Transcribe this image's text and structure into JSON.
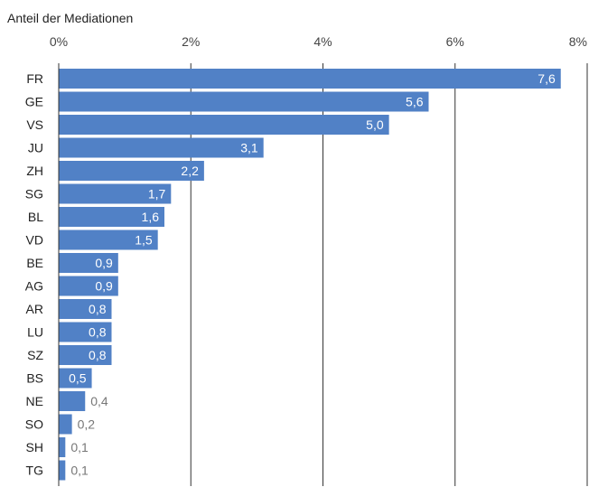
{
  "chart_data": {
    "type": "bar",
    "orientation": "horizontal",
    "title": "Anteil der Mediationen",
    "xlabel": "",
    "ylabel": "",
    "xlim": [
      0,
      8
    ],
    "x_ticks": [
      "0%",
      "2%",
      "4%",
      "6%",
      "8%"
    ],
    "grid": true,
    "categories": [
      "FR",
      "GE",
      "VS",
      "JU",
      "ZH",
      "SG",
      "BL",
      "VD",
      "BE",
      "AG",
      "AR",
      "LU",
      "SZ",
      "BS",
      "NE",
      "SO",
      "SH",
      "TG"
    ],
    "values": [
      7.6,
      5.6,
      5.0,
      3.1,
      2.2,
      1.7,
      1.6,
      1.5,
      0.9,
      0.9,
      0.8,
      0.8,
      0.8,
      0.5,
      0.4,
      0.2,
      0.1,
      0.1
    ],
    "value_labels": [
      "7,6",
      "5,6",
      "5,0",
      "3,1",
      "2,2",
      "1,7",
      "1,6",
      "1,5",
      "0,9",
      "0,9",
      "0,8",
      "0,8",
      "0,8",
      "0,5",
      "0,4",
      "0,2",
      "0,1",
      "0,1"
    ],
    "colors": {
      "bar": "#5181c6",
      "grid": "#333333"
    }
  }
}
